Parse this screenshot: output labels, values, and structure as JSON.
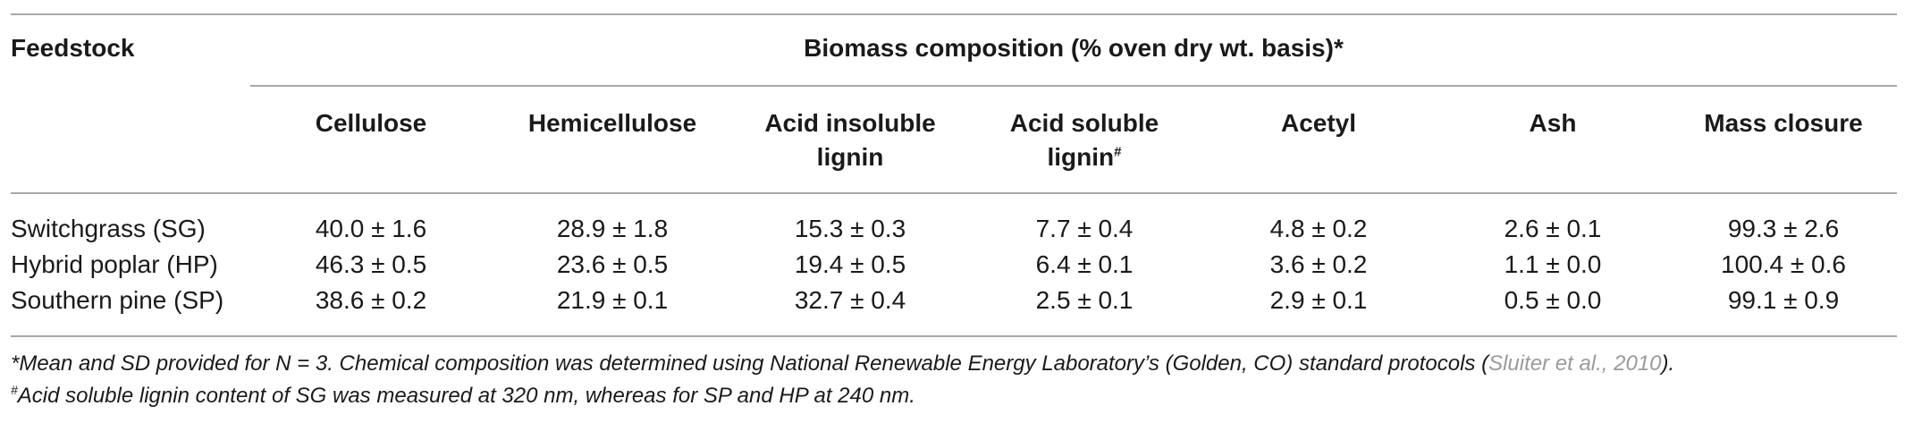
{
  "table": {
    "feedstock_header": "Feedstock",
    "group_header": "Biomass composition (% oven dry wt. basis)*",
    "columns": [
      {
        "line1": "Cellulose",
        "line2": "",
        "mark": ""
      },
      {
        "line1": "Hemicellulose",
        "line2": "",
        "mark": ""
      },
      {
        "line1": "Acid insoluble",
        "line2": "lignin",
        "mark": ""
      },
      {
        "line1": "Acid soluble",
        "line2": "lignin",
        "mark": "#"
      },
      {
        "line1": "Acetyl",
        "line2": "",
        "mark": ""
      },
      {
        "line1": "Ash",
        "line2": "",
        "mark": ""
      },
      {
        "line1": "Mass closure",
        "line2": "",
        "mark": ""
      }
    ],
    "rows": [
      {
        "label": "Switchgrass (SG)",
        "values": [
          "40.0 ± 1.6",
          "28.9 ± 1.8",
          "15.3 ± 0.3",
          "7.7 ± 0.4",
          "4.8 ± 0.2",
          "2.6 ± 0.1",
          "99.3 ± 2.6"
        ]
      },
      {
        "label": "Hybrid poplar (HP)",
        "values": [
          "46.3 ± 0.5",
          "23.6 ± 0.5",
          "19.4 ± 0.5",
          "6.4 ± 0.1",
          "3.6 ± 0.2",
          "1.1 ± 0.0",
          "100.4 ± 0.6"
        ]
      },
      {
        "label": "Southern pine (SP)",
        "values": [
          "38.6 ± 0.2",
          "21.9 ± 0.1",
          "32.7 ± 0.4",
          "2.5 ± 0.1",
          "2.9 ± 0.1",
          "0.5 ± 0.0",
          "99.1 ± 0.9"
        ]
      }
    ]
  },
  "footnotes": {
    "note1_text": "*Mean and SD provided for N = 3. Chemical composition was determined using National Renewable Energy Laboratory’s (Golden, CO) standard protocols (",
    "note1_cite": "Sluiter et al., 2010",
    "note1_end": ").",
    "note2_mark": "#",
    "note2_text": "Acid soluble lignin content of SG was measured at 320 nm, whereas for SP and HP at 240 nm."
  }
}
